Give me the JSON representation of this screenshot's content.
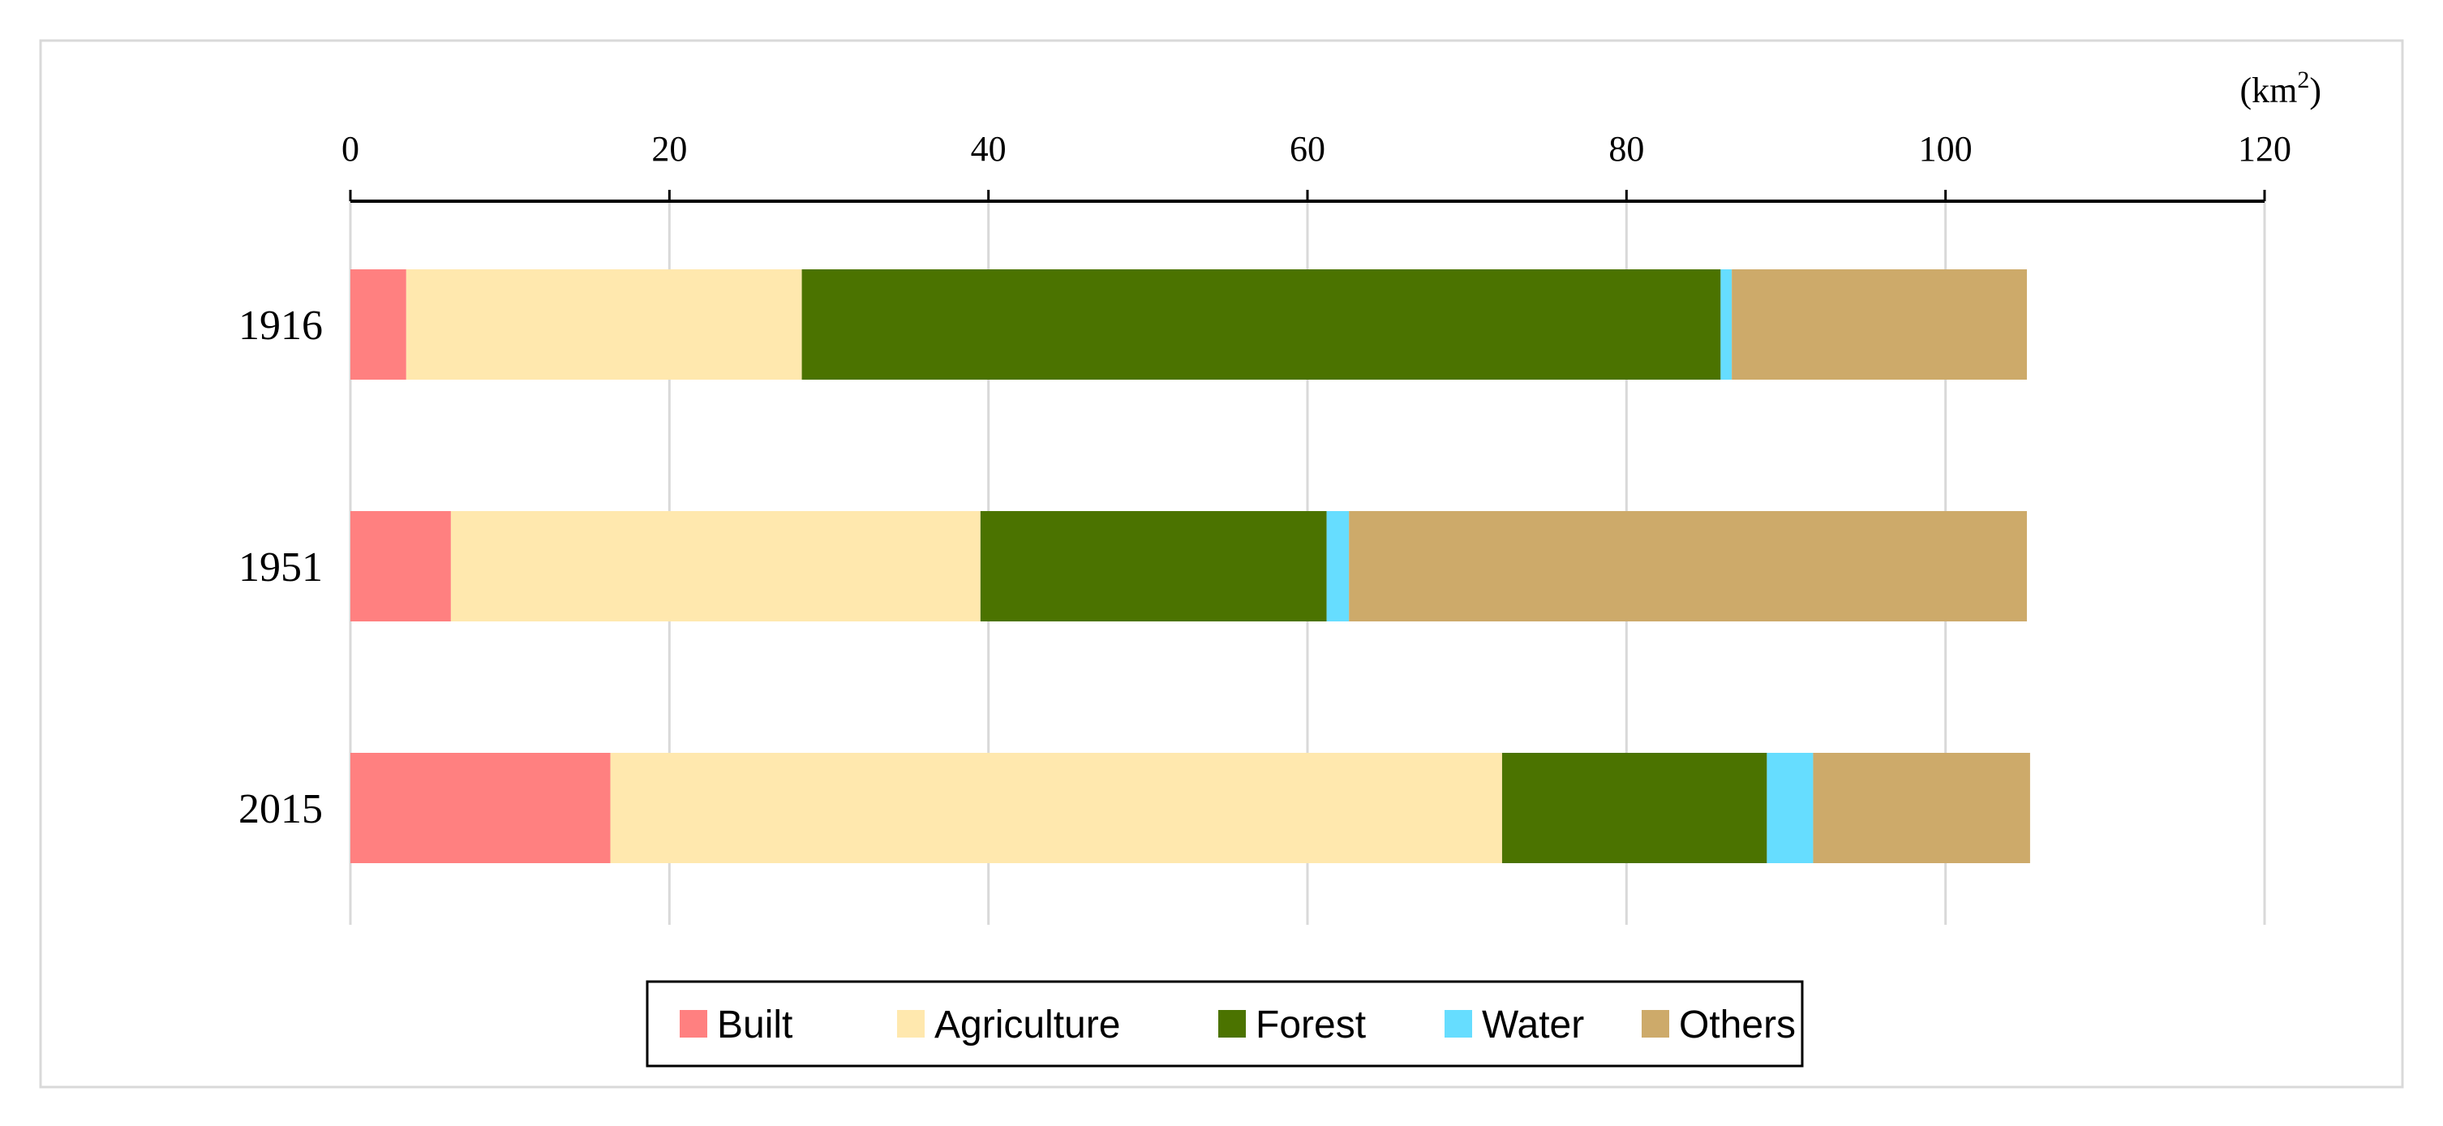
{
  "chart_data": {
    "type": "bar",
    "orientation": "horizontal",
    "stacked": true,
    "title": "",
    "xlabel": "",
    "ylabel": "",
    "unit_label": "(km",
    "unit_sup": "2",
    "unit_close": ")",
    "xlim": [
      0,
      120
    ],
    "xticks": [
      0,
      20,
      40,
      60,
      80,
      100,
      120
    ],
    "grid": true,
    "legend_position": "bottom-center",
    "categories": [
      "1916",
      "1951",
      "2015"
    ],
    "series": [
      {
        "name": "Built",
        "color": "#FF8080",
        "values": [
          3.5,
          6.3,
          16.3
        ]
      },
      {
        "name": "Agriculture",
        "color": "#FFE8AE",
        "values": [
          24.8,
          33.2,
          55.9
        ]
      },
      {
        "name": "Forest",
        "color": "#4B7300",
        "values": [
          57.6,
          21.7,
          16.6
        ]
      },
      {
        "name": "Water",
        "color": "#66DDFF",
        "values": [
          0.7,
          1.4,
          2.9
        ]
      },
      {
        "name": "Others",
        "color": "#CDAA6A",
        "values": [
          18.5,
          42.5,
          13.6
        ]
      }
    ]
  }
}
